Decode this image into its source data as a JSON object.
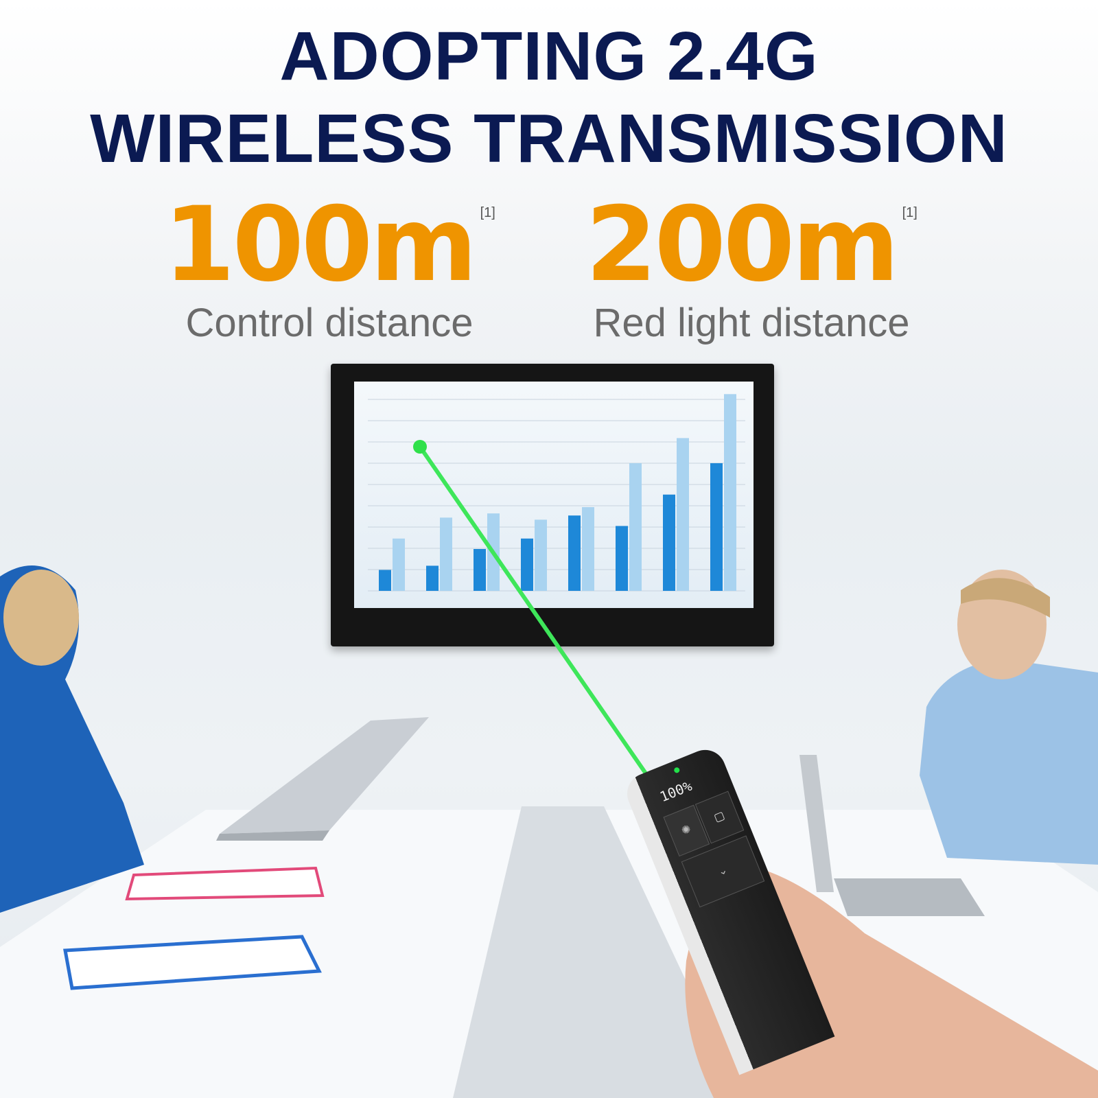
{
  "headline": {
    "line1": "ADOPTING 2.4G",
    "line2": "WIRELESS TRANSMISSION"
  },
  "stats": [
    {
      "value": "100m",
      "footnote": "[1]",
      "label": "Control distance"
    },
    {
      "value": "200m",
      "footnote": "[1]",
      "label": "Red light distance"
    }
  ],
  "colors": {
    "headline": "#0b1a52",
    "accent": "#ef9400",
    "label": "#6b6b6b",
    "laser": "#3ee65a",
    "bar_dark": "#1e88d8",
    "bar_light": "#a9d3f0"
  },
  "screen_chart": {
    "type": "bar",
    "dark_values": [
      10,
      12,
      20,
      25,
      36,
      31,
      46,
      61
    ],
    "light_values": [
      25,
      35,
      37,
      34,
      40,
      61,
      73,
      94
    ]
  },
  "device": {
    "display": "100%",
    "indicator_color": "#22e04a",
    "buttons": [
      "laser-button",
      "screen-button",
      "next-button"
    ]
  }
}
